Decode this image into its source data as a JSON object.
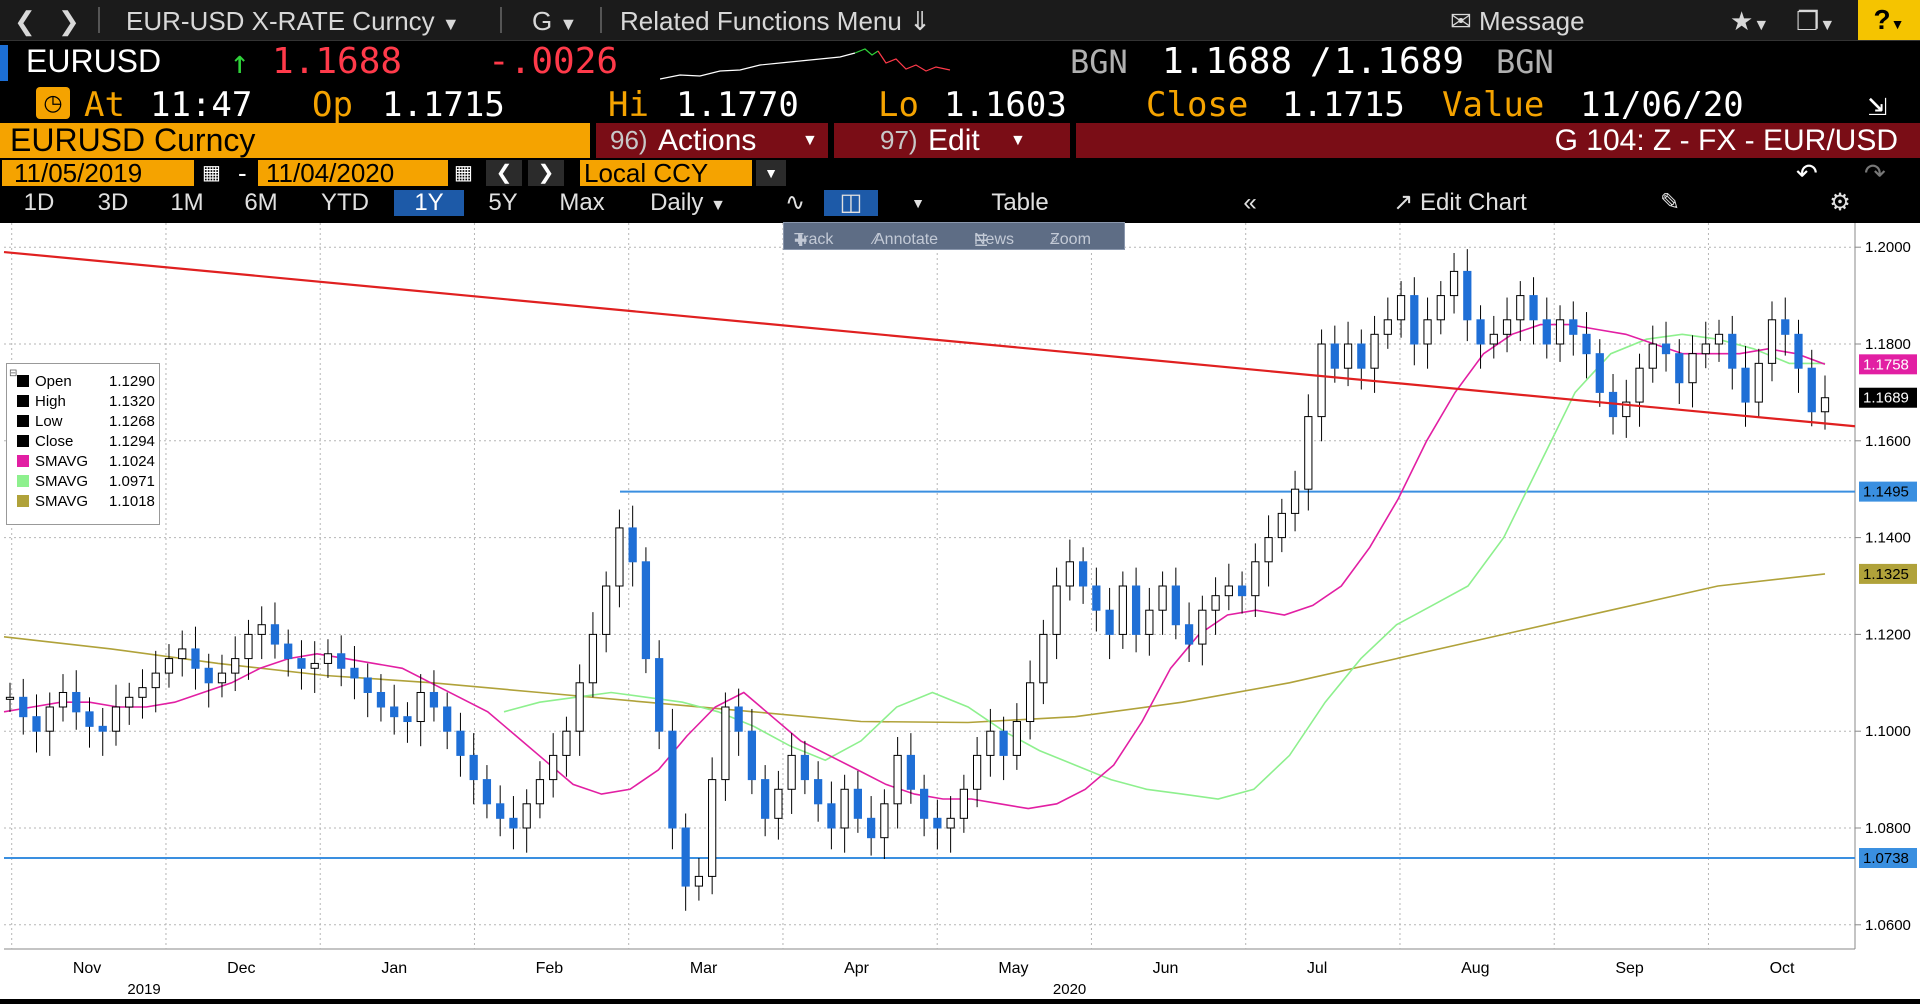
{
  "topbar": {
    "security": "EUR-USD X-RATE Curncy",
    "g_label": "G",
    "related": "Related Functions Menu",
    "message": "Message",
    "help": "?"
  },
  "quote": {
    "ticker": "EURUSD",
    "last": "1.1688",
    "change": "-.0026",
    "bid_src": "BGN",
    "bid": "1.1688",
    "slash": "/",
    "ask": "1.1689",
    "ask_src": "BGN"
  },
  "stats": {
    "at_label": "At",
    "at": "11:47",
    "op_label": "Op",
    "op": "1.1715",
    "hi_label": "Hi",
    "hi": "1.1770",
    "lo_label": "Lo",
    "lo": "1.1603",
    "close_label": "Close",
    "close": "1.1715",
    "value_label": "Value",
    "value": "11/06/20"
  },
  "bar4": {
    "name": "EURUSD Curncy",
    "actions_num": "96)",
    "actions": "Actions",
    "edit_num": "97)",
    "edit": "Edit",
    "right": "G 104: Z - FX - EUR/USD"
  },
  "bar5": {
    "start": "11/05/2019",
    "dash": "-",
    "end": "11/04/2020",
    "ccy": "Local CCY"
  },
  "bar6": {
    "periods": [
      "1D",
      "3D",
      "1M",
      "6M",
      "YTD",
      "1Y",
      "5Y",
      "Max"
    ],
    "active": "1Y",
    "freq": "Daily",
    "table": "Table",
    "edit_chart": "Edit Chart"
  },
  "toolbar": {
    "track": "Track",
    "annotate": "Annotate",
    "news": "News",
    "zoom": "Zoom"
  },
  "legend": [
    {
      "label": "Open",
      "value": "1.1290",
      "color": "#000000"
    },
    {
      "label": "High",
      "value": "1.1320",
      "color": "#000000"
    },
    {
      "label": "Low",
      "value": "1.1268",
      "color": "#000000"
    },
    {
      "label": "Close",
      "value": "1.1294",
      "color": "#000000"
    },
    {
      "label": "SMAVG",
      "value": "1.1024",
      "color": "#e21fa3"
    },
    {
      "label": "SMAVG",
      "value": "1.0971",
      "color": "#8ef08e"
    },
    {
      "label": "SMAVG",
      "value": "1.1018",
      "color": "#b0a23a"
    }
  ],
  "chart_data": {
    "type": "line",
    "title": "",
    "xlabel": "",
    "ylabel": "",
    "ylim": [
      1.055,
      1.205
    ],
    "yticks": [
      "1.2000",
      "1.1800",
      "1.1600",
      "1.1400",
      "1.1200",
      "1.1000",
      "1.0800",
      "1.0600"
    ],
    "xticks": [
      "Nov",
      "Dec",
      "Jan",
      "Feb",
      "Mar",
      "Apr",
      "May",
      "Jun",
      "Jul",
      "Aug",
      "Sep",
      "Oct"
    ],
    "year_labels": [
      "2019",
      "2020"
    ],
    "price_labels": [
      {
        "value": "1.1758",
        "color": "#e21fa3"
      },
      {
        "value": "1.1689",
        "color": "#000000"
      },
      {
        "value": "1.1495",
        "color": "#3a8fe0"
      },
      {
        "value": "1.1325",
        "color": "#b0a23a"
      },
      {
        "value": "1.0738",
        "color": "#3a8fe0"
      }
    ],
    "horizontal_lines": [
      1.1495,
      1.0738
    ],
    "trend_line": {
      "start": 1.199,
      "end": 1.163,
      "color": "#e02020"
    },
    "series": [
      {
        "name": "Close",
        "values": [
          1.107,
          1.103,
          1.1,
          1.105,
          1.108,
          1.104,
          1.101,
          1.1,
          1.105,
          1.107,
          1.109,
          1.112,
          1.115,
          1.117,
          1.113,
          1.11,
          1.112,
          1.115,
          1.12,
          1.122,
          1.118,
          1.115,
          1.113,
          1.114,
          1.116,
          1.113,
          1.111,
          1.108,
          1.105,
          1.103,
          1.102,
          1.108,
          1.105,
          1.1,
          1.095,
          1.09,
          1.085,
          1.082,
          1.08,
          1.085,
          1.09,
          1.095,
          1.1,
          1.11,
          1.12,
          1.13,
          1.142,
          1.135,
          1.115,
          1.1,
          1.08,
          1.068,
          1.07,
          1.09,
          1.105,
          1.1,
          1.09,
          1.082,
          1.088,
          1.095,
          1.09,
          1.085,
          1.08,
          1.088,
          1.082,
          1.078,
          1.085,
          1.095,
          1.088,
          1.082,
          1.08,
          1.082,
          1.088,
          1.095,
          1.1,
          1.095,
          1.102,
          1.11,
          1.12,
          1.13,
          1.135,
          1.13,
          1.125,
          1.12,
          1.13,
          1.12,
          1.125,
          1.13,
          1.122,
          1.118,
          1.125,
          1.128,
          1.13,
          1.128,
          1.135,
          1.14,
          1.145,
          1.15,
          1.165,
          1.18,
          1.175,
          1.18,
          1.175,
          1.182,
          1.185,
          1.19,
          1.18,
          1.185,
          1.19,
          1.195,
          1.185,
          1.18,
          1.182,
          1.185,
          1.19,
          1.185,
          1.18,
          1.185,
          1.182,
          1.178,
          1.17,
          1.165,
          1.168,
          1.175,
          1.18,
          1.178,
          1.172,
          1.178,
          1.18,
          1.182,
          1.175,
          1.168,
          1.176,
          1.185,
          1.182,
          1.175,
          1.166,
          1.1689
        ]
      },
      {
        "name": "SMAVG",
        "values": [
          1.104,
          1.105,
          1.106,
          1.106,
          1.105,
          1.105,
          1.106,
          1.108,
          1.11,
          1.113,
          1.115,
          1.116,
          1.115,
          1.114,
          1.113,
          1.11,
          1.107,
          1.104,
          1.099,
          1.094,
          1.089,
          1.087,
          1.088,
          1.092,
          1.099,
          1.105,
          1.108,
          1.103,
          1.098,
          1.095,
          1.092,
          1.089,
          1.087,
          1.086,
          1.086,
          1.085,
          1.084,
          1.085,
          1.088,
          1.093,
          1.102,
          1.113,
          1.12,
          1.124,
          1.125,
          1.124,
          1.126,
          1.13,
          1.138,
          1.148,
          1.16,
          1.17,
          1.178,
          1.182,
          1.184,
          1.184,
          1.183,
          1.182,
          1.18,
          1.178,
          1.178,
          1.178,
          1.179,
          1.178,
          1.1758
        ]
      },
      {
        "name": "SMAVG",
        "values": [
          1.104,
          1.106,
          1.107,
          1.108,
          1.107,
          1.106,
          1.104,
          1.101,
          1.097,
          1.094,
          1.098,
          1.105,
          1.108,
          1.105,
          1.1,
          1.096,
          1.093,
          1.09,
          1.088,
          1.087,
          1.086,
          1.088,
          1.095,
          1.106,
          1.115,
          1.122,
          1.126,
          1.13,
          1.14,
          1.155,
          1.17,
          1.178,
          1.181,
          1.182,
          1.181,
          1.179,
          1.176,
          1.176
        ]
      },
      {
        "name": "SMAVG",
        "values": [
          1.1195,
          1.117,
          1.114,
          1.1115,
          1.11,
          1.108,
          1.106,
          1.104,
          1.102,
          1.1018,
          1.103,
          1.106,
          1.11,
          1.115,
          1.12,
          1.125,
          1.13,
          1.1325
        ]
      }
    ]
  }
}
